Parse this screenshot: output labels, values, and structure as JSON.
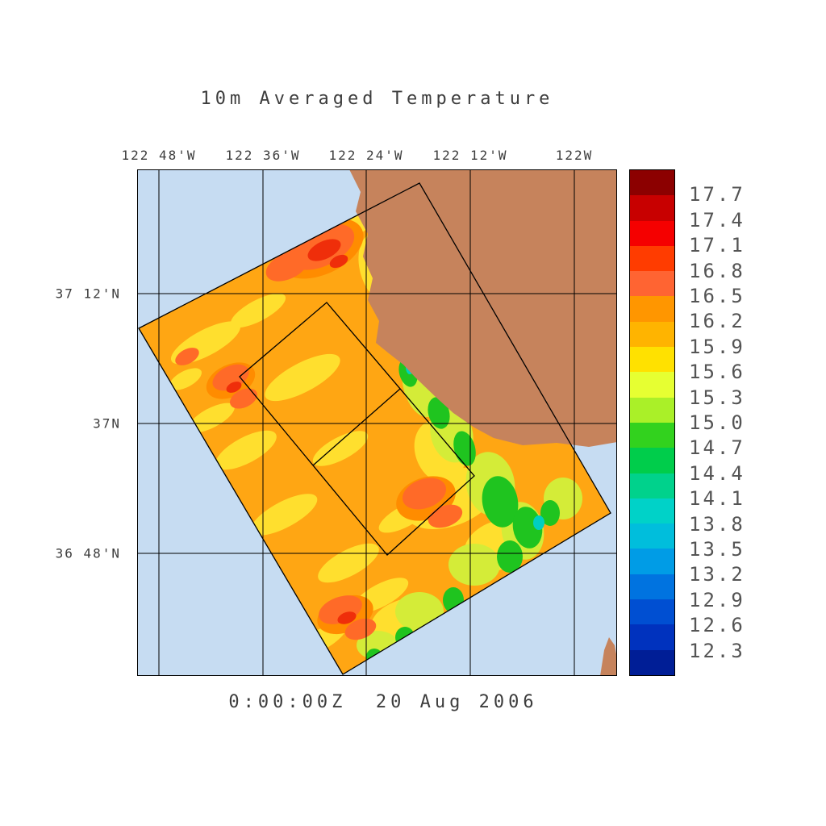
{
  "title": "10m Averaged Temperature",
  "timestamp": "0:00:00Z  20 Aug 2006",
  "map": {
    "x_tick_labels": [
      "122 48'W",
      "122 36'W",
      "122 24'W",
      "122 12'W",
      "122W"
    ],
    "y_tick_labels": [
      "37 12'N",
      "37N",
      "36 48'N"
    ],
    "colors": {
      "ocean": "#c6dcf2",
      "land": "#c6835c",
      "field_base": "#ffa613",
      "outline": "#000000"
    }
  },
  "colorbar": {
    "tick_labels": [
      "17.7",
      "17.4",
      "17.1",
      "16.8",
      "16.5",
      "16.2",
      "15.9",
      "15.6",
      "15.3",
      "15.0",
      "14.7",
      "14.4",
      "14.1",
      "13.8",
      "13.5",
      "13.2",
      "12.9",
      "12.6",
      "12.3"
    ],
    "band_colors_top_to_bottom": [
      "#8c0000",
      "#c80000",
      "#f50000",
      "#ff3c00",
      "#ff6432",
      "#ff9600",
      "#ffb400",
      "#ffe100",
      "#e6ff32",
      "#aaf028",
      "#32d21e",
      "#00cd4b",
      "#00d28c",
      "#00d2c8",
      "#00bedc",
      "#009ce6",
      "#0073e0",
      "#004fd2",
      "#0032be",
      "#001e96"
    ]
  },
  "chart_data": {
    "type": "heatmap",
    "title": "10m Averaged Temperature",
    "timestamp_label": "0:00:00Z  20 Aug 2006",
    "x_tick_labels": [
      "122 48'W",
      "122 36'W",
      "122 24'W",
      "122 12'W",
      "122W"
    ],
    "y_tick_labels": [
      "37 12'N",
      "37N",
      "36 48'N"
    ],
    "colorbar_tick_values": [
      17.7,
      17.4,
      17.1,
      16.8,
      16.5,
      16.2,
      15.9,
      15.6,
      15.3,
      15.0,
      14.7,
      14.4,
      14.1,
      13.8,
      13.5,
      13.2,
      12.9,
      12.6,
      12.3
    ],
    "colorbar_band_colors_top_to_bottom": [
      "#8c0000",
      "#c80000",
      "#f50000",
      "#ff3c00",
      "#ff6432",
      "#ff9600",
      "#ffb400",
      "#ffe100",
      "#e6ff32",
      "#aaf028",
      "#32d21e",
      "#00cd4b",
      "#00d28c",
      "#00d2c8",
      "#00bedc",
      "#009ce6",
      "#0073e0",
      "#004fd2",
      "#0032be",
      "#001e96"
    ],
    "value_range_shown": [
      12.3,
      17.7
    ],
    "legend_position": "right"
  }
}
